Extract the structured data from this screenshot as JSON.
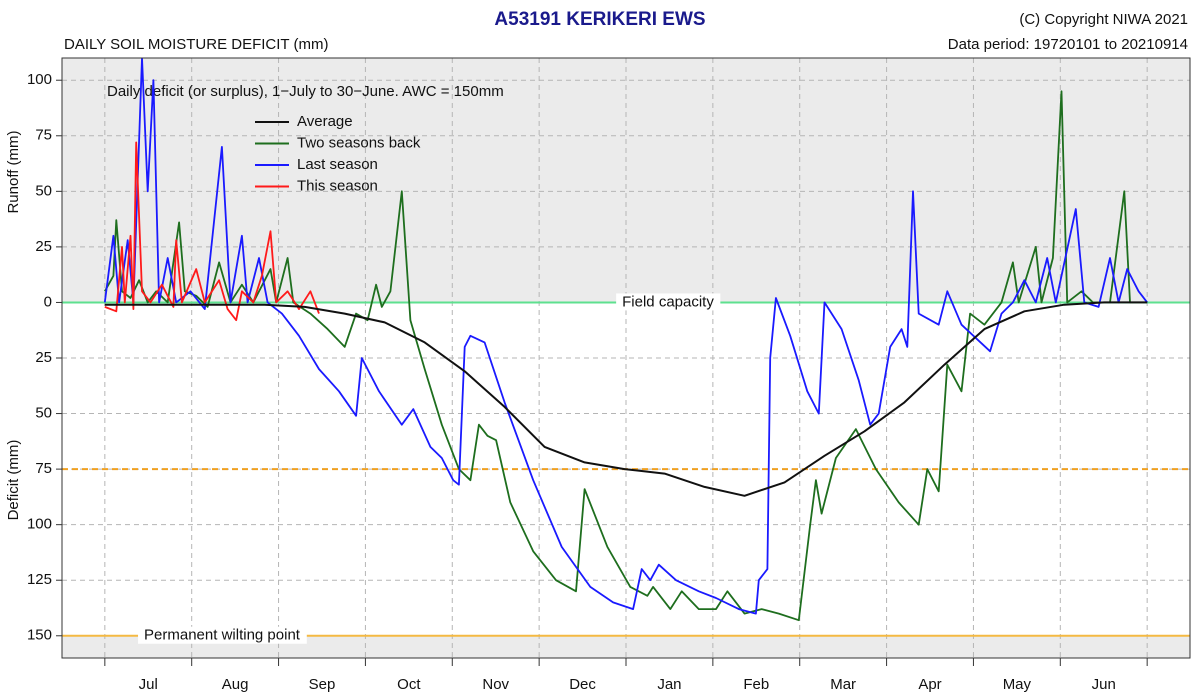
{
  "chart_data": {
    "type": "line",
    "title": "A53191  KERIKERI EWS",
    "subtitle": "DAILY SOIL MOISTURE DEFICIT (mm)",
    "copyright": "(C) Copyright NIWA  2021",
    "data_period": "Data period:  19720101  to  20210914",
    "annotation": "Daily deficit (or surplus), 1−July to 30−June.  AWC = 150mm",
    "y_label_top": "Runoff (mm)",
    "y_label_bottom": "Deficit (mm)",
    "categories": [
      "Jul",
      "Aug",
      "Sep",
      "Oct",
      "Nov",
      "Dec",
      "Jan",
      "Feb",
      "Mar",
      "Apr",
      "May",
      "Jun"
    ],
    "xlim": [
      -15,
      380
    ],
    "ylim": [
      -160,
      110
    ],
    "yticks": [
      100,
      75,
      50,
      25,
      0,
      {
        "value": -25,
        "label": "25"
      },
      {
        "value": -50,
        "label": "50"
      },
      {
        "value": -75,
        "label": "75"
      },
      {
        "value": -100,
        "label": "100"
      },
      {
        "value": -125,
        "label": "125"
      },
      {
        "value": -150,
        "label": "150"
      }
    ],
    "grid": true,
    "legend": "top-left",
    "shaded_ranges": [
      [
        0,
        110
      ],
      [
        -160,
        -150
      ]
    ],
    "reference_lines": [
      {
        "value": 0,
        "label": "Field capacity",
        "color": "#5ee08f"
      },
      {
        "value": -75,
        "color": "#f0a020",
        "dashed": true
      },
      {
        "value": -150,
        "label": "Permanent wilting point",
        "color": "#f5b942"
      }
    ],
    "series": [
      {
        "name": "Average",
        "color": "#111111",
        "x": [
          0,
          14,
          28,
          42,
          56,
          70,
          84,
          98,
          112,
          126,
          140,
          154,
          168,
          182,
          196,
          210,
          224,
          238,
          252,
          266,
          280,
          294,
          308,
          322,
          336,
          350,
          365
        ],
        "values": [
          -1,
          -1,
          -1,
          -1,
          -1,
          -2,
          -5,
          -9,
          -18,
          -31,
          -47,
          -65,
          -72,
          -75,
          -77,
          -83,
          -87,
          -81,
          -69,
          -58,
          -45,
          -28,
          -12,
          -4,
          -1,
          0,
          0
        ]
      },
      {
        "name": "Two seasons back",
        "color": "#1e6e1e",
        "x": [
          0,
          3,
          4,
          6,
          9,
          12,
          15,
          18,
          22,
          26,
          28,
          32,
          36,
          40,
          44,
          48,
          52,
          58,
          60,
          64,
          66,
          72,
          78,
          84,
          88,
          92,
          95,
          97,
          100,
          104,
          107,
          112,
          118,
          124,
          128,
          131,
          134,
          137,
          142,
          150,
          158,
          165,
          168,
          176,
          184,
          190,
          192,
          198,
          202,
          208,
          214,
          218,
          224,
          230,
          236,
          243,
          247,
          249,
          251,
          256,
          263,
          270,
          278,
          285,
          288,
          292,
          295,
          300,
          303,
          308,
          314,
          318,
          320,
          326,
          328,
          332,
          335,
          337,
          342,
          346,
          352,
          357,
          359,
          365
        ],
        "values": [
          5,
          12,
          37,
          5,
          2,
          10,
          0,
          5,
          0,
          36,
          5,
          3,
          -2,
          18,
          0,
          8,
          0,
          15,
          0,
          20,
          0,
          -5,
          -12,
          -20,
          -5,
          -8,
          8,
          -2,
          5,
          50,
          -8,
          -30,
          -55,
          -75,
          -80,
          -55,
          -60,
          -62,
          -90,
          -112,
          -125,
          -130,
          -84,
          -110,
          -128,
          -132,
          -128,
          -138,
          -130,
          -138,
          -138,
          -130,
          -140,
          -138,
          -140,
          -143,
          -100,
          -80,
          -95,
          -70,
          -57,
          -75,
          -90,
          -100,
          -75,
          -85,
          -28,
          -40,
          -5,
          -10,
          0,
          18,
          0,
          25,
          0,
          20,
          95,
          0,
          5,
          0,
          0,
          50,
          0,
          0
        ]
      },
      {
        "name": "Last season",
        "color": "#1a1aff",
        "x": [
          0,
          3,
          5,
          8,
          10,
          13,
          15,
          17,
          19,
          22,
          25,
          30,
          35,
          41,
          44,
          48,
          50,
          54,
          57,
          62,
          68,
          75,
          82,
          88,
          90,
          96,
          104,
          108,
          114,
          118,
          122,
          124,
          126,
          128,
          133,
          140,
          150,
          160,
          170,
          178,
          185,
          188,
          191,
          194,
          200,
          208,
          214,
          222,
          228,
          229,
          232,
          233,
          235,
          240,
          246,
          250,
          252,
          258,
          264,
          268,
          271,
          275,
          279,
          281,
          283,
          285,
          292,
          295,
          300,
          310,
          314,
          318,
          322,
          326,
          330,
          333,
          340,
          343,
          348,
          352,
          355,
          358,
          362,
          365
        ],
        "values": [
          0,
          30,
          0,
          28,
          0,
          110,
          50,
          100,
          0,
          20,
          0,
          5,
          -3,
          70,
          0,
          30,
          0,
          20,
          0,
          -5,
          -15,
          -30,
          -40,
          -51,
          -25,
          -40,
          -55,
          -48,
          -65,
          -70,
          -80,
          -82,
          -20,
          -15,
          -18,
          -45,
          -80,
          -110,
          -128,
          -135,
          -138,
          -120,
          -125,
          -118,
          -125,
          -130,
          -133,
          -138,
          -140,
          -125,
          -120,
          -25,
          2,
          -15,
          -40,
          -50,
          0,
          -12,
          -35,
          -55,
          -50,
          -20,
          -12,
          -20,
          50,
          -5,
          -10,
          5,
          -10,
          -22,
          -5,
          0,
          10,
          0,
          20,
          0,
          42,
          0,
          -2,
          20,
          0,
          15,
          5,
          0
        ]
      },
      {
        "name": "This season",
        "color": "#ff1a1a",
        "x": [
          0,
          4,
          6,
          7,
          9,
          10,
          11,
          13,
          16,
          20,
          24,
          25,
          27,
          32,
          35,
          40,
          43,
          46,
          48,
          52,
          55,
          58,
          60,
          64,
          68,
          72,
          75
        ],
        "values": [
          -2,
          -4,
          25,
          0,
          30,
          -3,
          72,
          5,
          0,
          8,
          -2,
          28,
          0,
          15,
          0,
          10,
          -3,
          -8,
          5,
          0,
          12,
          32,
          0,
          5,
          -3,
          5,
          -5
        ]
      }
    ]
  }
}
